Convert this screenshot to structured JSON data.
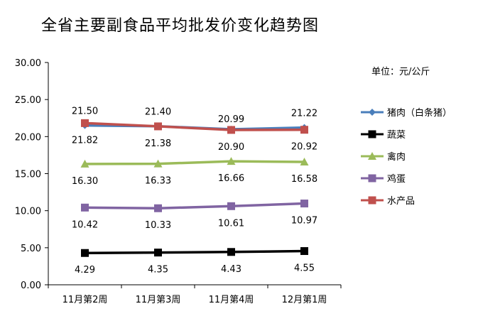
{
  "chart_data": {
    "type": "line",
    "title": "全省主要副食品平均批发价变化趋势图",
    "unit_label": "单位：元/公斤",
    "categories": [
      "11月第2周",
      "11月第3周",
      "11月第4周",
      "12月第1周"
    ],
    "ylim": [
      0,
      30
    ],
    "yticks": [
      "0.00",
      "5.00",
      "10.00",
      "15.00",
      "20.00",
      "25.00",
      "30.00"
    ],
    "grid": false,
    "legend_position": "right",
    "series": [
      {
        "name": "猪肉（白条猪）",
        "values": [
          21.5,
          21.4,
          20.99,
          21.22
        ],
        "color": "#4a7ebb",
        "marker": "diamond",
        "label_pos": "above"
      },
      {
        "name": "蔬菜",
        "values": [
          4.29,
          4.35,
          4.43,
          4.55
        ],
        "color": "#000000",
        "marker": "square",
        "label_pos": "below"
      },
      {
        "name": "禽肉",
        "values": [
          16.3,
          16.33,
          16.66,
          16.58
        ],
        "color": "#9bbb59",
        "marker": "triangle",
        "label_pos": "below"
      },
      {
        "name": "鸡蛋",
        "values": [
          10.42,
          10.33,
          10.61,
          10.97
        ],
        "color": "#8064a2",
        "marker": "square",
        "label_pos": "below"
      },
      {
        "name": "水产品",
        "values": [
          21.82,
          21.38,
          20.9,
          20.92
        ],
        "color": "#c0504d",
        "marker": "square",
        "label_pos": "below"
      }
    ]
  }
}
